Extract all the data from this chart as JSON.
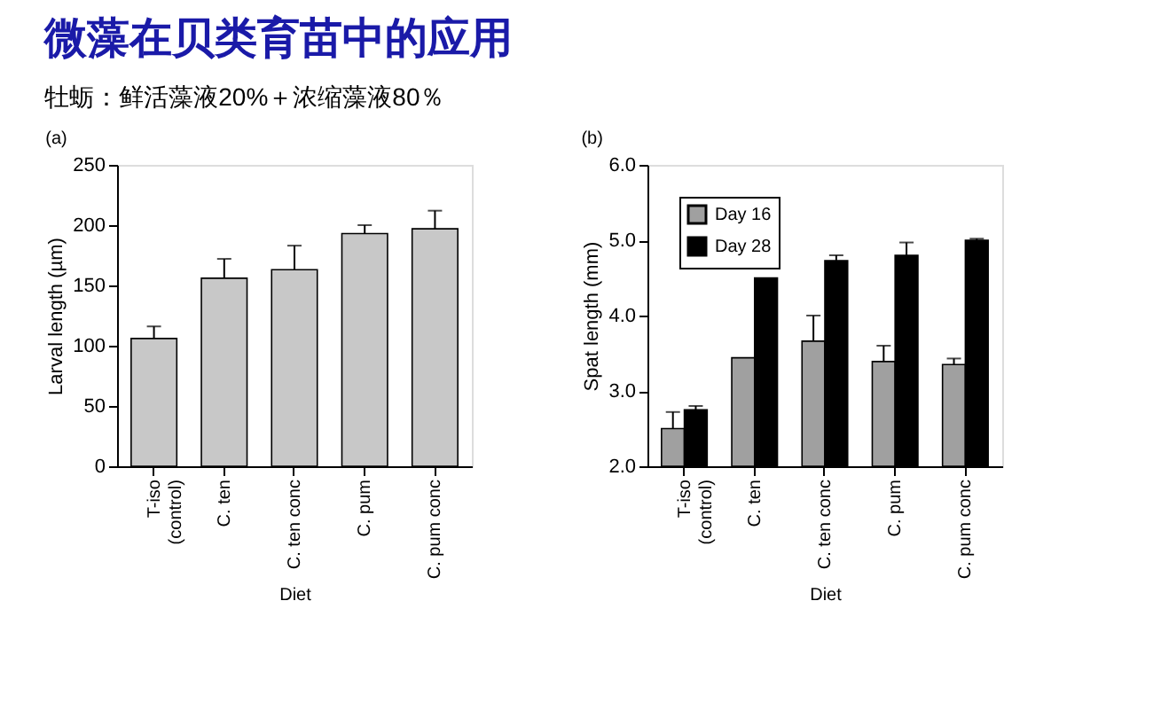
{
  "chart_data": [
    {
      "type": "bar",
      "title": "微藻在贝类育苗中的应用",
      "subtitle": "牡蛎：鲜活藻液20%＋浓缩藻液80％",
      "annotations": [
        "(a)"
      ],
      "xlabel": "Diet",
      "ylabel": "Larval length (µm)",
      "categories": [
        "T-iso\n(control)",
        "C. ten",
        "C. ten conc",
        "C. pum",
        "C. pum conc"
      ],
      "values": [
        106,
        156,
        163,
        193,
        197
      ],
      "errors": [
        [
          106,
          116
        ],
        [
          156,
          172
        ],
        [
          163,
          183
        ],
        [
          193,
          200
        ],
        [
          197,
          212
        ]
      ],
      "color": "#c8c8c8",
      "ylim": [
        0,
        250
      ],
      "yticks": [
        0,
        50,
        100,
        150,
        200,
        250
      ],
      "grid": false,
      "legend": false
    },
    {
      "type": "bar",
      "annotations": [
        "(b)"
      ],
      "xlabel": "Diet",
      "ylabel": "Spat length (mm)",
      "categories": [
        "T-iso\n(control)",
        "C. ten",
        "C. ten conc",
        "C. pum",
        "C. pum conc"
      ],
      "series": [
        {
          "name": "Day 16",
          "color": "#a0a0a0",
          "values": [
            2.5,
            3.44,
            3.66,
            3.39,
            3.35
          ],
          "errors": [
            [
              2.5,
              2.72
            ],
            null,
            [
              3.66,
              4.0
            ],
            [
              3.39,
              3.6
            ],
            [
              3.35,
              3.43
            ]
          ]
        },
        {
          "name": "Day 28",
          "color": "#000000",
          "values": [
            2.75,
            4.5,
            4.73,
            4.8,
            5.0
          ],
          "errors": [
            [
              2.75,
              2.8
            ],
            null,
            [
              4.73,
              4.8
            ],
            [
              4.8,
              4.97
            ],
            [
              5.0,
              5.02
            ]
          ]
        }
      ],
      "ylim": [
        2.0,
        6.0
      ],
      "yticks": [
        {
          "value": 2,
          "label": "2.0"
        },
        {
          "value": 3,
          "label": "3.0"
        },
        {
          "value": 4,
          "label": "4.0"
        },
        {
          "value": 5,
          "label": "5.0"
        },
        {
          "value": 6,
          "label": "6.0"
        }
      ],
      "grid": false,
      "legend": "top left"
    }
  ]
}
